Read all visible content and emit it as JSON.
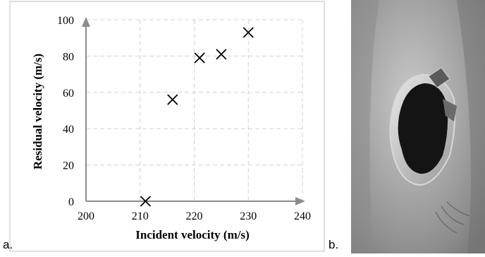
{
  "chart_data": {
    "type": "scatter",
    "xlabel": "Incident velocity (m/s)",
    "ylabel": "Residual velocity (m/s)",
    "xlim": [
      200,
      240
    ],
    "ylim": [
      0,
      100
    ],
    "x_ticks": [
      200,
      210,
      220,
      230,
      240
    ],
    "y_ticks": [
      0,
      20,
      40,
      60,
      80,
      100
    ],
    "grid": true,
    "marker": "x",
    "series": [
      {
        "x": [
          211,
          216,
          221,
          225,
          230
        ],
        "y": [
          0,
          56,
          79,
          81,
          93
        ]
      }
    ]
  },
  "labels": {
    "a": "a.",
    "b": "b."
  },
  "colors": {
    "axis": "#8c8c8c",
    "grid": "#d0d0d0",
    "marker": "#000000",
    "frame": "#bfbfbf"
  },
  "photo": {
    "subject": "perforated metal plate with hole",
    "icon": "perforation-photo"
  }
}
